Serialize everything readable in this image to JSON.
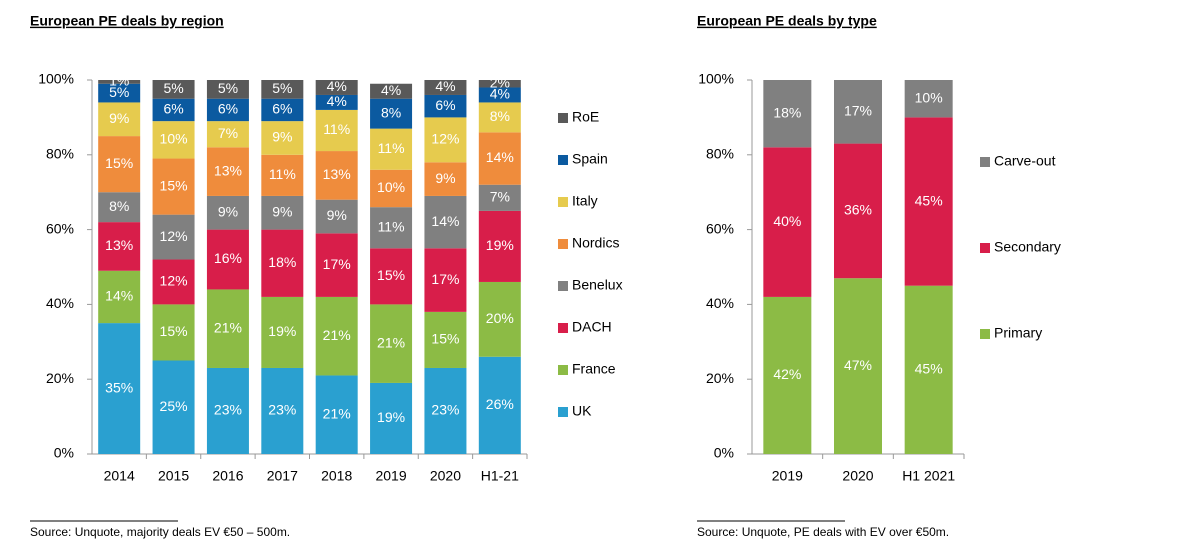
{
  "chart_data": [
    {
      "type": "stacked_bar",
      "title": "European PE deals by region",
      "source": "Source:  Unquote, majority deals EV €50 – 500m.",
      "categories": [
        "2014",
        "2015",
        "2016",
        "2017",
        "2018",
        "2019",
        "2020",
        "H1-21"
      ],
      "ylim": [
        0,
        100
      ],
      "yticks": [
        {
          "value": 0,
          "label": "0%"
        },
        {
          "value": 20,
          "label": "20%"
        },
        {
          "value": 40,
          "label": "40%"
        },
        {
          "value": 60,
          "label": "60%"
        },
        {
          "value": 80,
          "label": "80%"
        },
        {
          "value": 100,
          "label": "100%"
        }
      ],
      "series": [
        {
          "name": "UK",
          "color": "#2aa0d0",
          "values": [
            35,
            25,
            23,
            23,
            21,
            19,
            23,
            26
          ],
          "value_labels": [
            "35%",
            "25%",
            "23%",
            "23%",
            "21%",
            "19%",
            "23%",
            "26%"
          ]
        },
        {
          "name": "France",
          "color": "#8cbb45",
          "values": [
            14,
            15,
            21,
            19,
            21,
            21,
            15,
            20
          ],
          "value_labels": [
            "14%",
            "15%",
            "21%",
            "19%",
            "21%",
            "21%",
            "15%",
            "20%"
          ]
        },
        {
          "name": "DACH",
          "color": "#d81e4a",
          "values": [
            13,
            12,
            16,
            18,
            17,
            15,
            17,
            19
          ],
          "value_labels": [
            "13%",
            "12%",
            "16%",
            "18%",
            "17%",
            "15%",
            "17%",
            "19%"
          ]
        },
        {
          "name": "Benelux",
          "color": "#808080",
          "values": [
            8,
            12,
            9,
            9,
            9,
            11,
            14,
            7
          ],
          "value_labels": [
            "8%",
            "12%",
            "9%",
            "9%",
            "9%",
            "11%",
            "14%",
            "7%"
          ]
        },
        {
          "name": "Nordics",
          "color": "#ef8c3c",
          "values": [
            15,
            15,
            13,
            11,
            13,
            10,
            9,
            14
          ],
          "value_labels": [
            "15%",
            "15%",
            "13%",
            "11%",
            "13%",
            "10%",
            "9%",
            "14%"
          ]
        },
        {
          "name": "Italy",
          "color": "#e6cb4e",
          "values": [
            9,
            10,
            7,
            9,
            11,
            11,
            12,
            8
          ],
          "value_labels": [
            "9%",
            "10%",
            "7%",
            "9%",
            "11%",
            "11%",
            "12%",
            "8%"
          ]
        },
        {
          "name": "Spain",
          "color": "#0b5aa0",
          "values": [
            5,
            6,
            6,
            6,
            4,
            8,
            6,
            4
          ],
          "value_labels": [
            "5%",
            "6%",
            "6%",
            "6%",
            "4%",
            "8%",
            "6%",
            "4%"
          ]
        },
        {
          "name": "RoE",
          "color": "#595959",
          "values": [
            1,
            5,
            5,
            5,
            4,
            4,
            4,
            2
          ],
          "value_labels": [
            "1%",
            "5%",
            "5%",
            "5%",
            "4%",
            "4%",
            "4%",
            "2%"
          ]
        }
      ]
    },
    {
      "type": "stacked_bar",
      "title": "European PE deals by type",
      "source": "Source:  Unquote, PE deals with EV over €50m.",
      "categories": [
        "2019",
        "2020",
        "H1 2021"
      ],
      "ylim": [
        0,
        100
      ],
      "yticks": [
        {
          "value": 0,
          "label": "0%"
        },
        {
          "value": 20,
          "label": "20%"
        },
        {
          "value": 40,
          "label": "40%"
        },
        {
          "value": 60,
          "label": "60%"
        },
        {
          "value": 80,
          "label": "80%"
        },
        {
          "value": 100,
          "label": "100%"
        }
      ],
      "series": [
        {
          "name": "Primary",
          "color": "#8cbb45",
          "values": [
            42,
            47,
            45
          ],
          "value_labels": [
            "42%",
            "47%",
            "45%"
          ]
        },
        {
          "name": "Secondary",
          "color": "#d81e4a",
          "values": [
            40,
            36,
            45
          ],
          "value_labels": [
            "40%",
            "36%",
            "45%"
          ]
        },
        {
          "name": "Carve-out",
          "color": "#808080",
          "values": [
            18,
            17,
            10
          ],
          "value_labels": [
            "18%",
            "17%",
            "10%"
          ]
        }
      ]
    }
  ]
}
